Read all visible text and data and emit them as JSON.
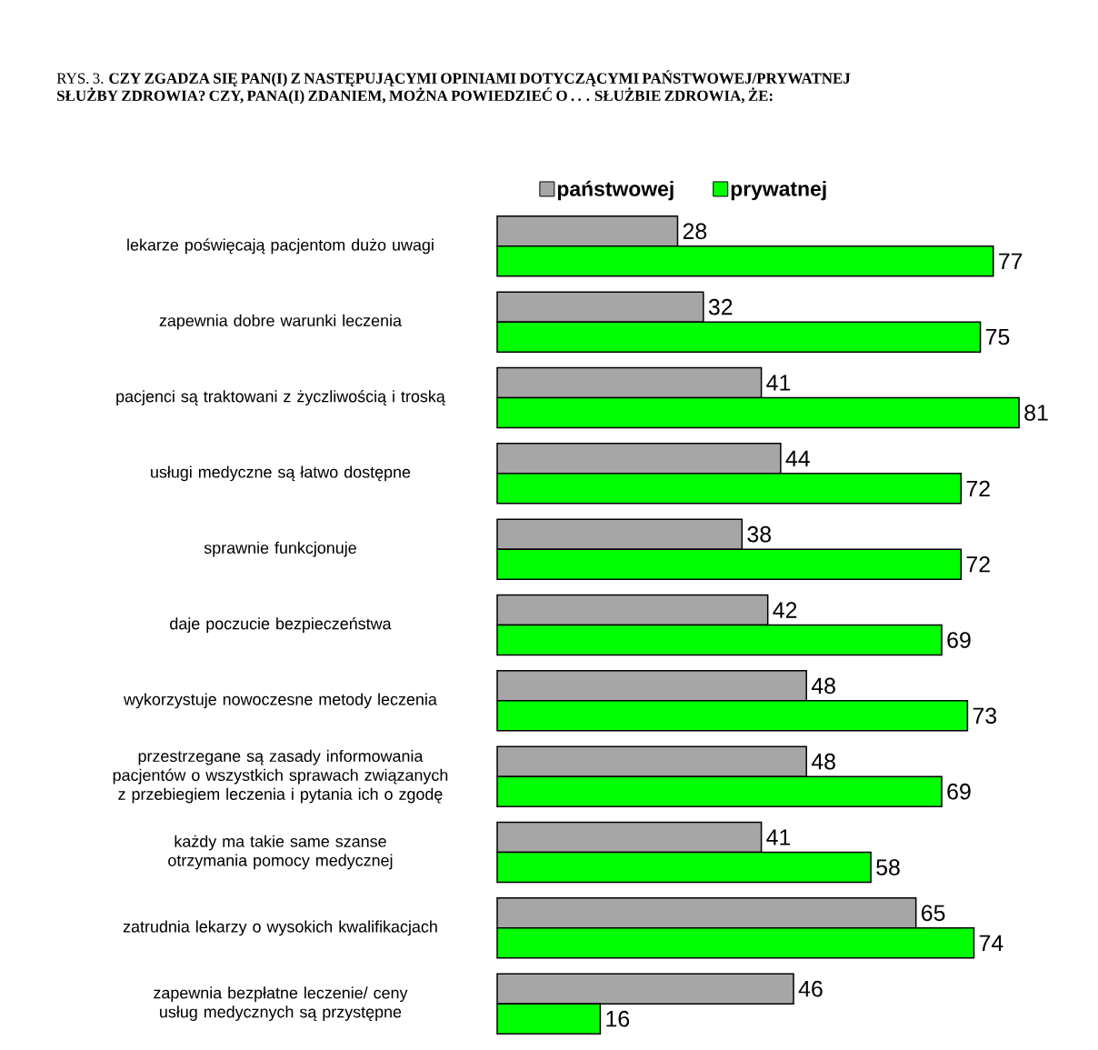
{
  "chart_data": {
    "type": "bar",
    "orientation": "horizontal",
    "title": "RYS. 3. **CZY ZGADZA SIĘ PAN(I) Z NASTĘPUJĄCYMI OPINIAMI DOTYCZĄCYMI PAŃSTWOWEJ/PRYWATNEJ SŁUŻBY ZDROWIA? CZY, PANA(I) ZDANIEM, MOŻNA POWIEDZIEĆ O . . . SŁUŻBIE ZDROWIA, ŻE:**",
    "categories": [
      "lekarze poświęcają pacjentom dużo uwagi",
      "zapewnia dobre warunki leczenia",
      "pacjenci są traktowani z życzliwością i troską",
      "usługi medyczne są łatwo dostępne",
      "sprawnie funkcjonuje",
      "daje poczucie bezpieczeństwa",
      "wykorzystuje nowoczesne metody leczenia",
      "przestrzegane są zasady informowania pacjentów o wszystkich sprawach związanych z przebiegiem leczenia i pytania ich o zgodę",
      "każdy ma takie same szanse otrzymania pomocy medycznej",
      "zatrudnia lekarzy o wysokich kwalifikacjach",
      "zapewnia bezpłatne leczenie/ ceny usług medycznych są przystępne"
    ],
    "series": [
      {
        "name": "państwowej",
        "color": "#a6a6a6",
        "values": [
          28,
          32,
          41,
          44,
          38,
          42,
          48,
          48,
          41,
          65,
          46
        ]
      },
      {
        "name": "prywatnej",
        "color": "#00ff00",
        "values": [
          77,
          75,
          81,
          72,
          72,
          69,
          73,
          69,
          58,
          74,
          16
        ]
      }
    ],
    "data_labels": true,
    "legend": "top",
    "grid": false
  }
}
